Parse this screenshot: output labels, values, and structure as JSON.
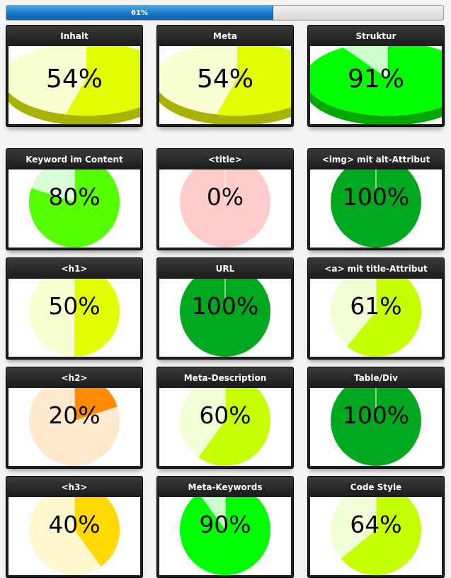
{
  "progress": {
    "value": 61,
    "label": "61%"
  },
  "cards": [
    {
      "title": "Inhalt",
      "percent": 54,
      "label": "54%",
      "style": "3d",
      "color": "#e1ff00",
      "light": "#f9ffd0",
      "side": "#a7b300"
    },
    {
      "title": "Meta",
      "percent": 54,
      "label": "54%",
      "style": "3d",
      "color": "#e1ff00",
      "light": "#f9ffd0",
      "side": "#a7b300"
    },
    {
      "title": "Struktur",
      "percent": 91,
      "label": "91%",
      "style": "3d",
      "color": "#00ff00",
      "light": "#ccffcc",
      "side": "#00a800"
    },
    {
      "title": "Keyword im Content",
      "percent": 80,
      "label": "80%",
      "style": "flat",
      "color": "#55ff00",
      "light": "#d9ffd6"
    },
    {
      "title": "<title>",
      "percent": 0,
      "label": "0%",
      "style": "flat",
      "color": "#ff8a8a",
      "light": "#ffcccc"
    },
    {
      "title": "<img> mit alt-Attribut",
      "percent": 100,
      "label": "100%",
      "style": "flat",
      "color": "#00a820",
      "light": "#ccffcc"
    },
    {
      "title": "<h1>",
      "percent": 50,
      "label": "50%",
      "style": "flat",
      "color": "#e1ff00",
      "light": "#f9ffd0"
    },
    {
      "title": "URL",
      "percent": 100,
      "label": "100%",
      "style": "flat",
      "color": "#00a820",
      "light": "#ccffcc"
    },
    {
      "title": "<a> mit title-Attribut",
      "percent": 61,
      "label": "61%",
      "style": "flat",
      "color": "#c6ff00",
      "light": "#f1ffd6"
    },
    {
      "title": "<h2>",
      "percent": 20,
      "label": "20%",
      "style": "flat",
      "color": "#ff8c00",
      "light": "#ffe9cf"
    },
    {
      "title": "Meta-Description",
      "percent": 60,
      "label": "60%",
      "style": "flat",
      "color": "#c6ff00",
      "light": "#f1ffd6"
    },
    {
      "title": "Table/Div",
      "percent": 100,
      "label": "100%",
      "style": "flat",
      "color": "#00a820",
      "light": "#ccffcc"
    },
    {
      "title": "<h3>",
      "percent": 40,
      "label": "40%",
      "style": "flat",
      "color": "#ffd900",
      "light": "#fff8cf"
    },
    {
      "title": "Meta-Keywords",
      "percent": 90,
      "label": "90%",
      "style": "flat",
      "color": "#00ff00",
      "light": "#ccffcc"
    },
    {
      "title": "Code Style",
      "percent": 64,
      "label": "64%",
      "style": "flat",
      "color": "#c6ff00",
      "light": "#f1ffd6"
    }
  ]
}
